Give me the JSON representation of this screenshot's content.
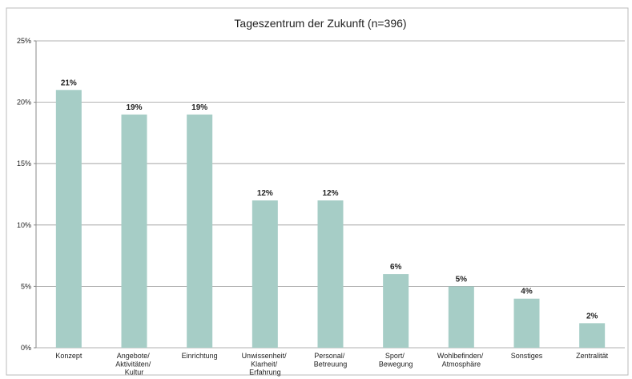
{
  "chart_data": {
    "type": "bar",
    "title": "Tageszentrum der Zukunft (n=396)",
    "categories": [
      "Konzept",
      "Angebote/\nAktivitäten/\nKultur",
      "Einrichtung",
      "Unwissenheit/\nKlarheit/\nErfahrung",
      "Personal/\nBetreuung",
      "Sport/\nBewegung",
      "Wohlbefinden/\nAtmosphäre",
      "Sonstiges",
      "Zentralität"
    ],
    "values": [
      21,
      19,
      19,
      12,
      12,
      6,
      5,
      4,
      2
    ],
    "value_labels": [
      "21%",
      "19%",
      "19%",
      "12%",
      "12%",
      "6%",
      "5%",
      "4%",
      "2%"
    ],
    "color": "#a6cdc6",
    "ylim": [
      0,
      25
    ],
    "yticks": [
      {
        "value": 0,
        "label": "0%"
      },
      {
        "value": 5,
        "label": "5%"
      },
      {
        "value": 10,
        "label": "10%"
      },
      {
        "value": 15,
        "label": "15%"
      },
      {
        "value": 20,
        "label": "20%"
      },
      {
        "value": 25,
        "label": "25%"
      }
    ],
    "grid": true
  }
}
